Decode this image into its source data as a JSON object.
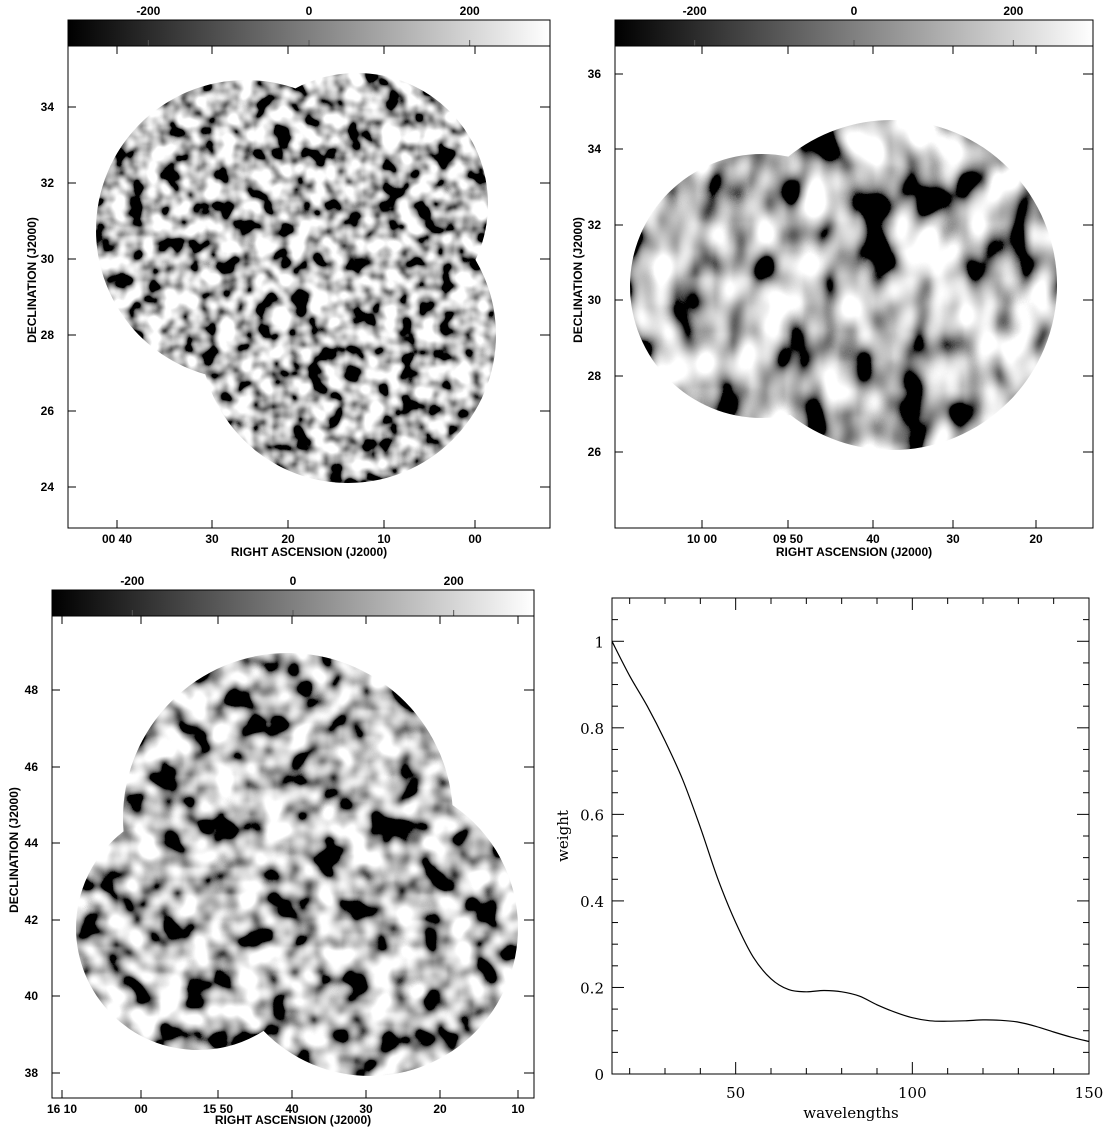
{
  "chart_data": [
    {
      "type": "heatmap",
      "panel": "top-left",
      "colorbar": {
        "ticks": [
          -200,
          0,
          200
        ],
        "range": [
          -300,
          300
        ],
        "colormap": "greyscale"
      },
      "xlabel": "RIGHT ASCENSION (J2000)",
      "ylabel": "DECLINATION (J2000)",
      "x_ticks": [
        "00 40",
        "30",
        "20",
        "10",
        "00"
      ],
      "y_ticks": [
        "24",
        "26",
        "28",
        "30",
        "32",
        "34"
      ]
    },
    {
      "type": "heatmap",
      "panel": "top-right",
      "colorbar": {
        "ticks": [
          -200,
          0,
          200
        ],
        "range": [
          -300,
          300
        ],
        "colormap": "greyscale"
      },
      "xlabel": "RIGHT ASCENSION (J2000)",
      "ylabel": "DECLINATION (J2000)",
      "x_ticks": [
        "10 00",
        "09 50",
        "40",
        "30",
        "20"
      ],
      "y_ticks": [
        "26",
        "28",
        "30",
        "32",
        "34",
        "36"
      ]
    },
    {
      "type": "heatmap",
      "panel": "bottom-left",
      "colorbar": {
        "ticks": [
          -200,
          0,
          200
        ],
        "range": [
          -300,
          300
        ],
        "colormap": "greyscale"
      },
      "xlabel": "RIGHT ASCENSION (J2000)",
      "ylabel": "DECLINATION (J2000)",
      "x_ticks": [
        "16 10",
        "00",
        "15 50",
        "40",
        "30",
        "20",
        "10"
      ],
      "y_ticks": [
        "38",
        "40",
        "42",
        "44",
        "46",
        "48"
      ]
    },
    {
      "type": "line",
      "panel": "bottom-right",
      "xlabel": "wavelengths",
      "ylabel": "weight",
      "xlim": [
        15,
        150
      ],
      "ylim": [
        0,
        1.1
      ],
      "x_ticks": [
        50,
        100,
        150
      ],
      "y_ticks": [
        0,
        0.2,
        0.4,
        0.6,
        0.8,
        1
      ],
      "x": [
        15,
        20,
        25,
        30,
        35,
        40,
        45,
        50,
        55,
        60,
        65,
        70,
        75,
        80,
        85,
        90,
        95,
        100,
        105,
        110,
        115,
        120,
        125,
        130,
        135,
        140,
        145,
        150
      ],
      "y": [
        1.0,
        0.92,
        0.85,
        0.77,
        0.68,
        0.57,
        0.45,
        0.35,
        0.27,
        0.22,
        0.195,
        0.19,
        0.193,
        0.19,
        0.18,
        0.16,
        0.143,
        0.13,
        0.123,
        0.122,
        0.123,
        0.125,
        0.124,
        0.12,
        0.11,
        0.097,
        0.085,
        0.075
      ]
    }
  ]
}
